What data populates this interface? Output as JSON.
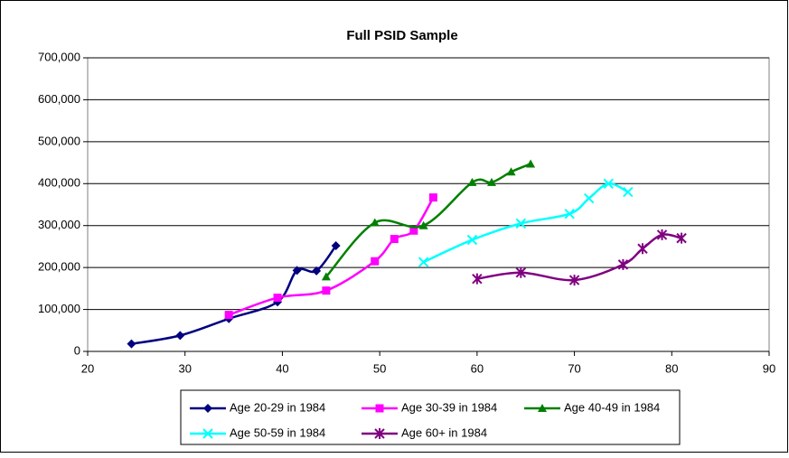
{
  "chart_data": {
    "type": "line",
    "title": "Full PSID Sample",
    "xlim": [
      20,
      90
    ],
    "xticks": [
      20,
      30,
      40,
      50,
      60,
      70,
      80,
      90
    ],
    "ylim": [
      0,
      700000
    ],
    "yticks": [
      {
        "value": 0,
        "label": "0"
      },
      {
        "value": 100000,
        "label": "100,000"
      },
      {
        "value": 200000,
        "label": "200,000"
      },
      {
        "value": 300000,
        "label": "300,000"
      },
      {
        "value": 400000,
        "label": "400,000"
      },
      {
        "value": 500000,
        "label": "500,000"
      },
      {
        "value": 600000,
        "label": "600,000"
      },
      {
        "value": 700000,
        "label": "700,000"
      }
    ],
    "grid": true,
    "smooth": true,
    "legend": "bottom",
    "series": [
      {
        "name": "Age 20-29 in 1984",
        "color": "#000080",
        "marker": "diamond",
        "x": [
          24.5,
          29.5,
          34.5,
          39.5,
          41.5,
          43.5,
          45.5
        ],
        "values": [
          18000,
          38000,
          78000,
          118000,
          193000,
          192000,
          252000
        ]
      },
      {
        "name": "Age 30-39 in 1984",
        "color": "#ff00ff",
        "marker": "square",
        "x": [
          34.5,
          39.5,
          44.5,
          49.5,
          51.5,
          53.5,
          55.5
        ],
        "values": [
          87000,
          128000,
          145000,
          215000,
          268000,
          288000,
          367000
        ]
      },
      {
        "name": "Age 40-49 in 1984",
        "color": "#008000",
        "marker": "triangle",
        "x": [
          44.5,
          49.5,
          54.5,
          59.5,
          61.5,
          63.5,
          65.5
        ],
        "values": [
          178000,
          307000,
          300000,
          403000,
          403000,
          428000,
          447000
        ]
      },
      {
        "name": "Age 50-59 in 1984",
        "color": "#00ffff",
        "marker": "x",
        "x": [
          54.5,
          59.5,
          64.5,
          69.5,
          71.5,
          73.5,
          75.5
        ],
        "values": [
          213000,
          266000,
          305000,
          328000,
          365000,
          400000,
          380000
        ]
      },
      {
        "name": "Age 60+ in 1984",
        "color": "#800080",
        "marker": "star",
        "x": [
          60,
          64.5,
          70,
          75,
          77,
          79,
          81
        ],
        "values": [
          173000,
          188000,
          170000,
          207000,
          245000,
          278000,
          270000
        ]
      }
    ]
  }
}
